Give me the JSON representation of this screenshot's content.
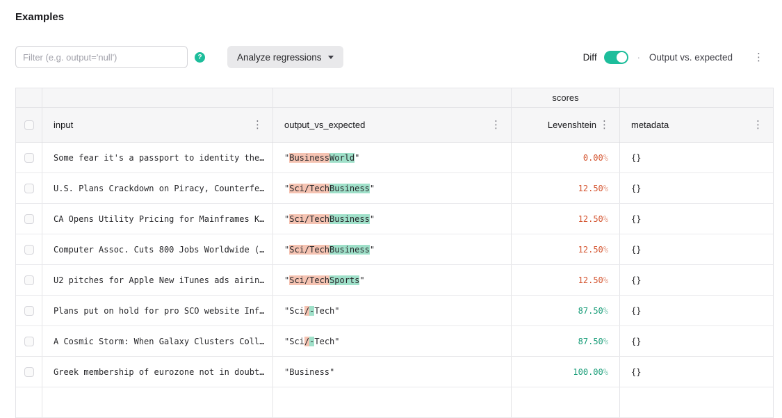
{
  "page": {
    "title": "Examples"
  },
  "toolbar": {
    "filter_placeholder": "Filter (e.g. output='null')",
    "help_icon": "?",
    "analyze_button_label": "Analyze regressions",
    "diff_label": "Diff",
    "diff_toggle_state": "on",
    "separator": "·",
    "view_label": "Output vs. expected",
    "kebab_glyph": "⋮"
  },
  "colors": {
    "accent_teal": "#1dbd9b",
    "score_low": "#d4542f",
    "score_high": "#169c77",
    "diff_removed_bg": "#f5c3b2",
    "diff_added_bg": "#9fe0c9"
  },
  "table": {
    "group_label": "scores",
    "columns": [
      {
        "key": "input",
        "label": "input"
      },
      {
        "key": "output_vs_expected",
        "label": "output_vs_expected"
      },
      {
        "key": "levenshtein",
        "label": "Levenshtein"
      },
      {
        "key": "metadata",
        "label": "metadata"
      }
    ],
    "rows": [
      {
        "input": "Some fear it's a passport to identity the…",
        "output_segments": [
          {
            "text": "\"",
            "highlight": "none"
          },
          {
            "text": "Business",
            "highlight": "removed"
          },
          {
            "text": "World",
            "highlight": "added"
          },
          {
            "text": "\"",
            "highlight": "none"
          }
        ],
        "score": "0.00%",
        "score_kind": "low",
        "metadata": "{}"
      },
      {
        "input": "U.S. Plans Crackdown on Piracy, Counterfe…",
        "output_segments": [
          {
            "text": "\"",
            "highlight": "none"
          },
          {
            "text": "Sci/Tech",
            "highlight": "removed"
          },
          {
            "text": "Business",
            "highlight": "added"
          },
          {
            "text": "\"",
            "highlight": "none"
          }
        ],
        "score": "12.50%",
        "score_kind": "low",
        "metadata": "{}"
      },
      {
        "input": "CA Opens Utility Pricing for Mainframes K…",
        "output_segments": [
          {
            "text": "\"",
            "highlight": "none"
          },
          {
            "text": "Sci/Tech",
            "highlight": "removed"
          },
          {
            "text": "Business",
            "highlight": "added"
          },
          {
            "text": "\"",
            "highlight": "none"
          }
        ],
        "score": "12.50%",
        "score_kind": "low",
        "metadata": "{}"
      },
      {
        "input": "Computer Assoc. Cuts 800 Jobs Worldwide (…",
        "output_segments": [
          {
            "text": "\"",
            "highlight": "none"
          },
          {
            "text": "Sci/Tech",
            "highlight": "removed"
          },
          {
            "text": "Business",
            "highlight": "added"
          },
          {
            "text": "\"",
            "highlight": "none"
          }
        ],
        "score": "12.50%",
        "score_kind": "low",
        "metadata": "{}"
      },
      {
        "input": "U2 pitches for Apple New iTunes ads airin…",
        "output_segments": [
          {
            "text": "\"",
            "highlight": "none"
          },
          {
            "text": "Sci/Tech",
            "highlight": "removed"
          },
          {
            "text": "Sports",
            "highlight": "added"
          },
          {
            "text": "\"",
            "highlight": "none"
          }
        ],
        "score": "12.50%",
        "score_kind": "low",
        "metadata": "{}"
      },
      {
        "input": "Plans put on hold for pro SCO website Inf…",
        "output_segments": [
          {
            "text": "\"Sci",
            "highlight": "none"
          },
          {
            "text": "/",
            "highlight": "removed"
          },
          {
            "text": "-",
            "highlight": "added"
          },
          {
            "text": "Tech\"",
            "highlight": "none"
          }
        ],
        "score": "87.50%",
        "score_kind": "high",
        "metadata": "{}"
      },
      {
        "input": "A Cosmic Storm: When Galaxy Clusters Coll…",
        "output_segments": [
          {
            "text": "\"Sci",
            "highlight": "none"
          },
          {
            "text": "/",
            "highlight": "removed"
          },
          {
            "text": "-",
            "highlight": "added"
          },
          {
            "text": "Tech\"",
            "highlight": "none"
          }
        ],
        "score": "87.50%",
        "score_kind": "high",
        "metadata": "{}"
      },
      {
        "input": "Greek membership of eurozone not in doubt…",
        "output_segments": [
          {
            "text": "\"Business\"",
            "highlight": "none"
          }
        ],
        "score": "100.00%",
        "score_kind": "high",
        "metadata": "{}"
      }
    ]
  }
}
